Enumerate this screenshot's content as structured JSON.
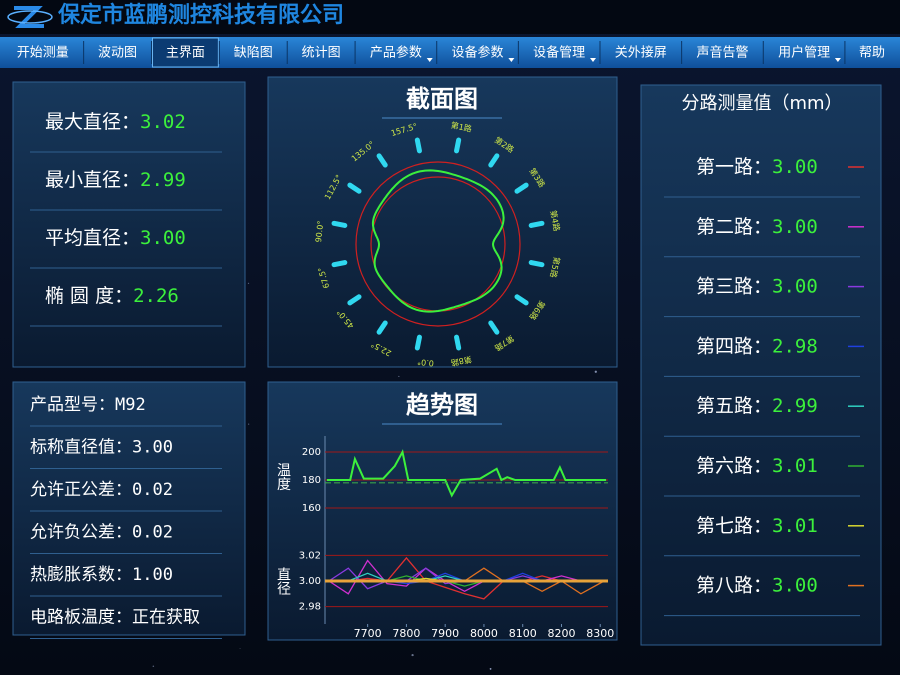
{
  "header": {
    "title": "保定市蓝鹏测控科技有限公司"
  },
  "menu": [
    {
      "label": "开始测量"
    },
    {
      "label": "波动图"
    },
    {
      "label": "主界面",
      "active": true
    },
    {
      "label": "缺陷图"
    },
    {
      "label": "统计图"
    },
    {
      "label": "产品参数",
      "dropdown": true
    },
    {
      "label": "设备参数",
      "dropdown": true
    },
    {
      "label": "设备管理",
      "dropdown": true
    },
    {
      "label": "关外接屏"
    },
    {
      "label": "声音告警"
    },
    {
      "label": "用户管理",
      "dropdown": true
    },
    {
      "label": "帮助"
    }
  ],
  "stats": [
    {
      "label": "最大直径：",
      "value": "3.02"
    },
    {
      "label": "最小直径：",
      "value": "2.99"
    },
    {
      "label": "平均直径：",
      "value": "3.00"
    },
    {
      "label": "椭 圆 度：",
      "value": "2.26"
    }
  ],
  "params": [
    {
      "label": "产品型号：",
      "value": "M92"
    },
    {
      "label": "标称直径值：",
      "value": "3.00"
    },
    {
      "label": "允许正公差：",
      "value": "0.02"
    },
    {
      "label": "允许负公差：",
      "value": "0.02"
    },
    {
      "label": "热膨胀系数：",
      "value": "1.00"
    },
    {
      "label": "电路板温度：",
      "value": "正在获取"
    }
  ],
  "section": {
    "title": "截面图",
    "angle_labels": [
      "0.0°",
      "22.5°",
      "45.0°",
      "67.5°",
      "90.0°",
      "112.5°",
      "135.0°",
      "157.5°"
    ],
    "channel_labels": [
      "第1路",
      "第2路",
      "第3路",
      "第4路",
      "第5路",
      "第6路",
      "第7路",
      "第8路"
    ]
  },
  "channels": {
    "title": "分路测量值（mm）",
    "items": [
      {
        "label": "第一路：",
        "value": "3.00",
        "color": "#e03030"
      },
      {
        "label": "第二路：",
        "value": "3.00",
        "color": "#d030d0"
      },
      {
        "label": "第三路：",
        "value": "3.00",
        "color": "#8a3ae0"
      },
      {
        "label": "第四路：",
        "value": "2.98",
        "color": "#2040e0"
      },
      {
        "label": "第五路：",
        "value": "2.99",
        "color": "#30d0c0"
      },
      {
        "label": "第六路：",
        "value": "3.01",
        "color": "#30b030"
      },
      {
        "label": "第七路：",
        "value": "3.01",
        "color": "#d8d830"
      },
      {
        "label": "第八路：",
        "value": "3.00",
        "color": "#e07020"
      }
    ]
  },
  "trend": {
    "title": "趋势图"
  },
  "chart_data": [
    {
      "type": "line",
      "ylabel": "温度",
      "xlim": [
        7590,
        8320
      ],
      "ylim": [
        155,
        210
      ],
      "yticks": [
        160,
        180,
        200
      ],
      "reference": 178,
      "reference_color": "#3aa04a",
      "series": [
        {
          "color": "#3cf03c",
          "x": [
            7595,
            7640,
            7655,
            7667,
            7690,
            7740,
            7770,
            7790,
            7805,
            7880,
            7900,
            7917,
            7940,
            7990,
            8033,
            8045,
            8060,
            8080,
            8180,
            8196,
            8210,
            8260,
            8315
          ],
          "values": [
            180,
            180,
            180,
            195,
            181,
            181,
            190,
            200,
            180,
            180,
            180,
            169,
            180,
            181,
            188,
            180,
            182,
            180,
            180,
            189,
            180,
            180,
            180
          ]
        }
      ]
    },
    {
      "type": "line",
      "ylabel": "直径",
      "xlim": [
        7590,
        8320
      ],
      "ylim": [
        2.968,
        3.032
      ],
      "yticks": [
        2.98,
        {
          "value": 3,
          "label": "3.00"
        },
        3.02
      ],
      "xticks": [
        7700,
        7800,
        7900,
        8000,
        8100,
        8200,
        8300
      ],
      "reference": 3,
      "reference_color": "#e8a33a",
      "x": [
        7600,
        7650,
        7700,
        7750,
        7800,
        7850,
        7900,
        7950,
        8000,
        8050,
        8100,
        8150,
        8200,
        8250,
        8310
      ],
      "series": [
        {
          "color": "#e03030",
          "values": [
            3,
            3,
            3.002,
            3,
            3.018,
            3,
            2.995,
            2.99,
            2.986,
            3,
            3,
            3.004,
            3,
            3,
            3
          ]
        },
        {
          "color": "#d030d0",
          "values": [
            3,
            2.99,
            3.016,
            2.998,
            2.996,
            3.01,
            3,
            2.992,
            3,
            3,
            3,
            3,
            3.004,
            3,
            3
          ]
        },
        {
          "color": "#8a3ae0",
          "values": [
            3,
            3.01,
            2.994,
            3,
            3,
            3.01,
            2.998,
            3,
            3,
            3,
            3.004,
            3,
            3,
            3,
            3
          ]
        },
        {
          "color": "#2040e0",
          "values": [
            3,
            3,
            3,
            3,
            2.998,
            3,
            3.006,
            3,
            3,
            3,
            3.006,
            3,
            3,
            3,
            3
          ]
        },
        {
          "color": "#30d0c0",
          "values": [
            3,
            3,
            3.006,
            3,
            3,
            3,
            3.004,
            3,
            3,
            3,
            3,
            3,
            3,
            3,
            3
          ]
        },
        {
          "color": "#30b030",
          "values": [
            3,
            3,
            3,
            3,
            3.004,
            3,
            3,
            2.996,
            3,
            3,
            3,
            3,
            3,
            3,
            3
          ]
        },
        {
          "color": "#d8d830",
          "values": [
            3,
            3,
            3,
            3,
            3,
            3.002,
            3,
            3,
            3,
            3,
            3,
            3,
            3,
            3,
            3
          ]
        },
        {
          "color": "#e07020",
          "values": [
            3,
            3,
            3,
            3,
            3,
            3,
            3,
            3,
            3.01,
            3,
            3,
            2.992,
            3,
            2.99,
            3
          ]
        }
      ]
    }
  ]
}
